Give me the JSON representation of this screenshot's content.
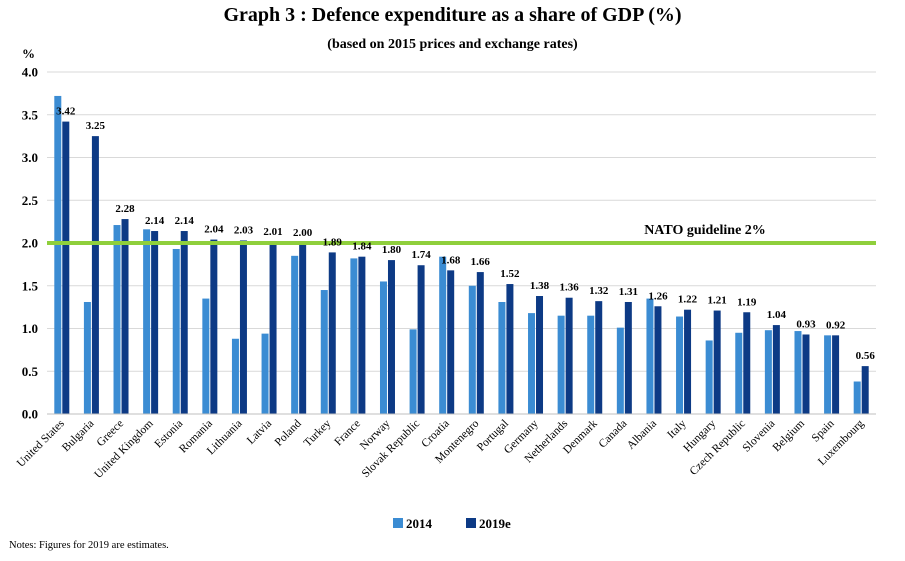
{
  "chart_data": {
    "type": "bar",
    "title": "Graph 3 : Defence expenditure as a share of GDP (%)",
    "subtitle": "(based on 2015 prices and exchange rates)",
    "ylabel": "%",
    "ylim": [
      0,
      4
    ],
    "yticks": [
      "0.0",
      "0.5",
      "1.0",
      "1.5",
      "2.0",
      "2.5",
      "3.0",
      "3.5",
      "4.0"
    ],
    "grid": true,
    "legend_position": "bottom",
    "categories": [
      "United States",
      "Bulgaria",
      "Greece",
      "United Kingdom",
      "Estonia",
      "Romania",
      "Lithuania",
      "Latvia",
      "Poland",
      "Turkey",
      "France",
      "Norway",
      "Slovak Republic",
      "Croatia",
      "Montenegro",
      "Portugal",
      "Germany",
      "Netherlands",
      "Denmark",
      "Canada",
      "Albania",
      "Italy",
      "Hungary",
      "Czech Republic",
      "Slovenia",
      "Belgium",
      "Spain",
      "Luxembourg"
    ],
    "series": [
      {
        "name": "2014",
        "color": "#3b8cd3",
        "values": [
          3.72,
          1.31,
          2.21,
          2.16,
          1.93,
          1.35,
          0.88,
          0.94,
          1.85,
          1.45,
          1.82,
          1.55,
          0.99,
          1.84,
          1.5,
          1.31,
          1.18,
          1.15,
          1.15,
          1.01,
          1.35,
          1.14,
          0.86,
          0.95,
          0.98,
          0.97,
          0.92,
          0.38
        ]
      },
      {
        "name": "2019e",
        "color": "#0d3a85",
        "values": [
          3.42,
          3.25,
          2.28,
          2.14,
          2.14,
          2.04,
          2.03,
          2.01,
          2.0,
          1.89,
          1.84,
          1.8,
          1.74,
          1.68,
          1.66,
          1.52,
          1.38,
          1.36,
          1.32,
          1.31,
          1.26,
          1.22,
          1.21,
          1.19,
          1.04,
          0.93,
          0.92,
          0.56
        ],
        "labels": [
          "3.42",
          "3.25",
          "2.28",
          "2.14",
          "2.14",
          "2.04",
          "2.03",
          "2.01",
          "2.00",
          "1.89",
          "1.84",
          "1.80",
          "1.74",
          "1.68",
          "1.66",
          "1.52",
          "1.38",
          "1.36",
          "1.32",
          "1.31",
          "1.26",
          "1.22",
          "1.21",
          "1.19",
          "1.04",
          "0.93",
          "0.92",
          "0.56"
        ]
      }
    ],
    "reference_line": {
      "value": 2.0,
      "label": "NATO guideline 2%",
      "color": "#8fcf3c"
    }
  },
  "notes": "Notes: Figures for 2019 are estimates."
}
